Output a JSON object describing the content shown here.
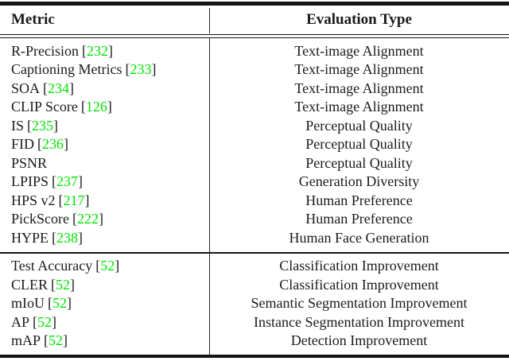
{
  "table": {
    "citation_color": "#00e400",
    "citation_open": "[",
    "citation_close": "]",
    "columns": [
      {
        "label": "Metric"
      },
      {
        "label": "Evaluation Type"
      }
    ],
    "sections": [
      {
        "rows": [
          {
            "metric": "R-Precision",
            "cite": "232",
            "type": "Text-image Alignment"
          },
          {
            "metric": "Captioning Metrics",
            "cite": "233",
            "type": "Text-image Alignment"
          },
          {
            "metric": "SOA",
            "cite": "234",
            "type": "Text-image Alignment"
          },
          {
            "metric": "CLIP Score",
            "cite": "126",
            "type": "Text-image Alignment"
          },
          {
            "metric": "IS",
            "cite": "235",
            "type": "Perceptual Quality"
          },
          {
            "metric": "FID",
            "cite": "236",
            "type": "Perceptual Quality"
          },
          {
            "metric": "PSNR",
            "cite": null,
            "type": "Perceptual Quality"
          },
          {
            "metric": "LPIPS",
            "cite": "237",
            "type": "Generation Diversity"
          },
          {
            "metric": "HPS v2",
            "cite": "217",
            "type": "Human Preference"
          },
          {
            "metric": "PickScore",
            "cite": "222",
            "type": "Human Preference"
          },
          {
            "metric": "HYPE",
            "cite": "238",
            "type": "Human Face Generation"
          }
        ]
      },
      {
        "rows": [
          {
            "metric": "Test Accuracy",
            "cite": "52",
            "type": "Classification Improvement"
          },
          {
            "metric": "CLER",
            "cite": "52",
            "type": "Classification Improvement"
          },
          {
            "metric": "mIoU",
            "cite": "52",
            "type": "Semantic Segmentation Improvement"
          },
          {
            "metric": "AP",
            "cite": "52",
            "type": "Instance Segmentation Improvement"
          },
          {
            "metric": "mAP",
            "cite": "52",
            "type": "Detection Improvement"
          }
        ]
      }
    ]
  }
}
